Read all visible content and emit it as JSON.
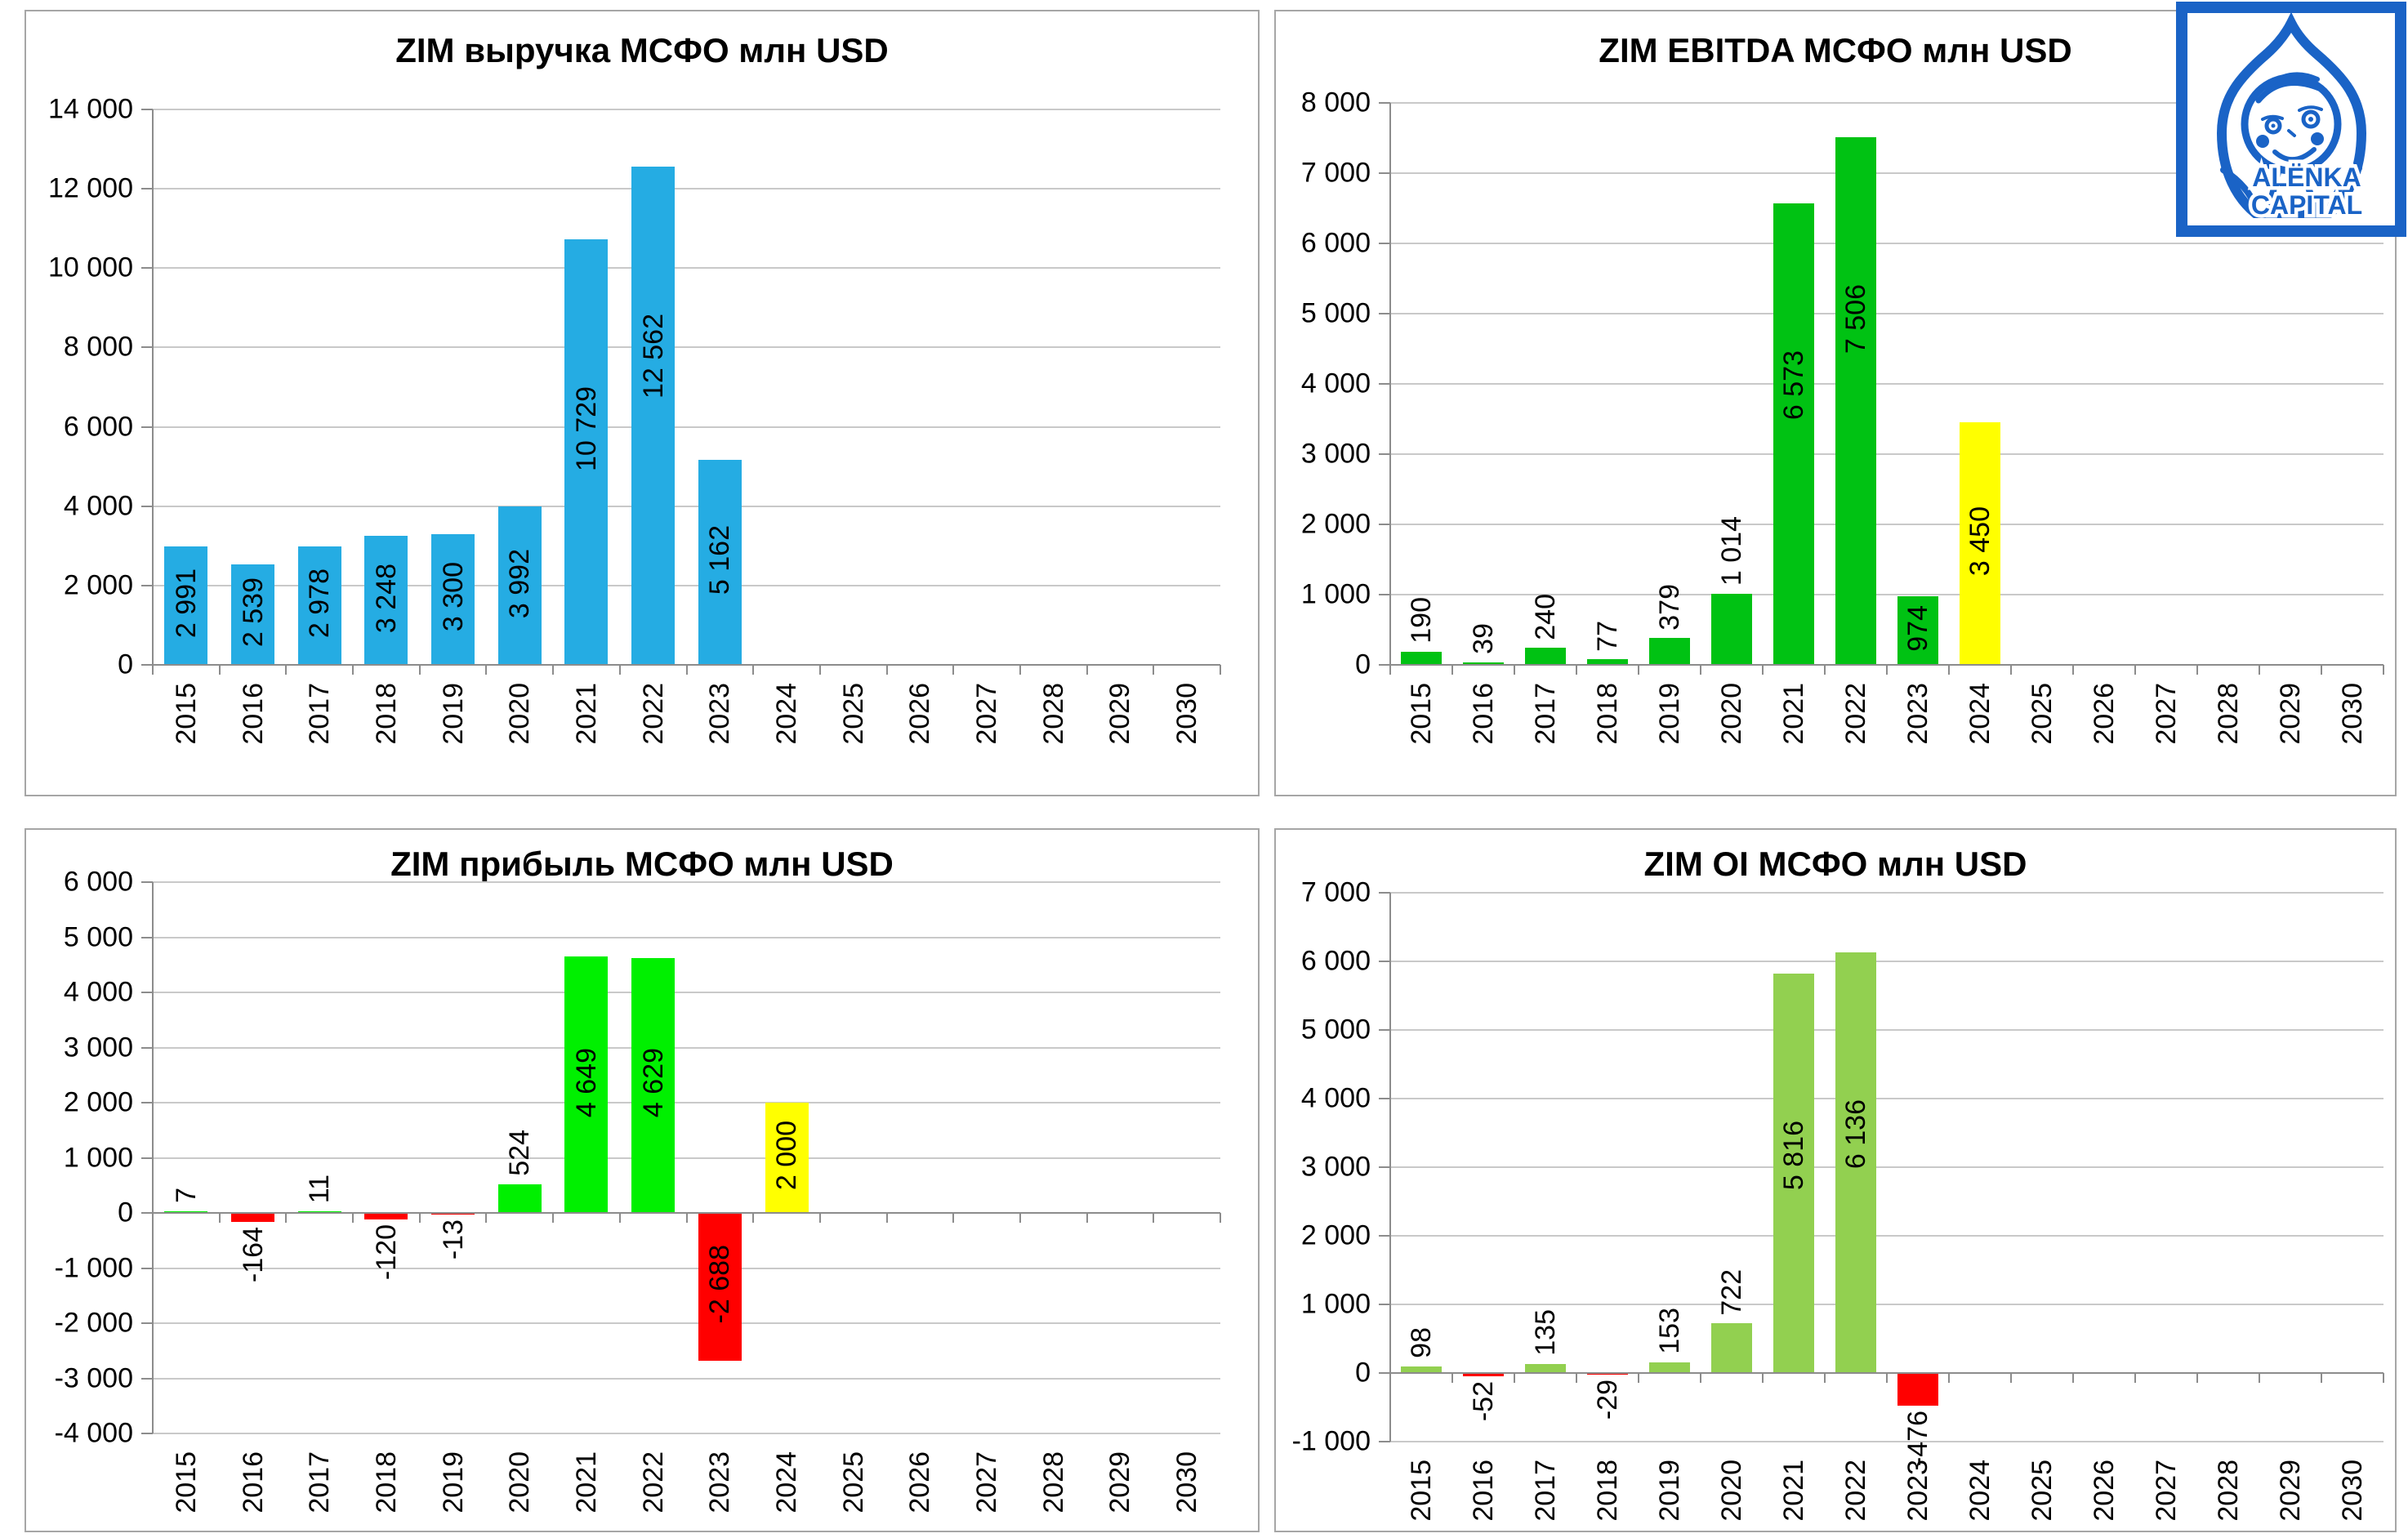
{
  "logo": {
    "line1": "ALЁNKA",
    "line2": "CAPITAL",
    "color": "#1a63c6"
  },
  "categories": [
    "2015",
    "2016",
    "2017",
    "2018",
    "2019",
    "2020",
    "2021",
    "2022",
    "2023",
    "2024",
    "2025",
    "2026",
    "2027",
    "2028",
    "2029",
    "2030"
  ],
  "chart_data": [
    {
      "type": "bar",
      "title": "ZIM выручка МСФО млн USD",
      "categories": [
        "2015",
        "2016",
        "2017",
        "2018",
        "2019",
        "2020",
        "2021",
        "2022",
        "2023",
        "2024",
        "2025",
        "2026",
        "2027",
        "2028",
        "2029",
        "2030"
      ],
      "values": [
        2991,
        2539,
        2978,
        3248,
        3300,
        3992,
        10729,
        12562,
        5162,
        null,
        null,
        null,
        null,
        null,
        null,
        null
      ],
      "labels": [
        "2 991",
        "2 539",
        "2 978",
        "3 248",
        "3 300",
        "3 992",
        "10 729",
        "12 562",
        "5 162"
      ],
      "colors": [
        "#25ace3",
        "#25ace3",
        "#25ace3",
        "#25ace3",
        "#25ace3",
        "#25ace3",
        "#25ace3",
        "#25ace3",
        "#25ace3"
      ],
      "xlabel": "",
      "ylabel": "",
      "ylim": [
        0,
        14000
      ],
      "ystep": 2000,
      "grid": true,
      "legend": false
    },
    {
      "type": "bar",
      "title": "ZIM EBITDA МСФО млн USD",
      "categories": [
        "2015",
        "2016",
        "2017",
        "2018",
        "2019",
        "2020",
        "2021",
        "2022",
        "2023",
        "2024",
        "2025",
        "2026",
        "2027",
        "2028",
        "2029",
        "2030"
      ],
      "values": [
        190,
        39,
        240,
        77,
        379,
        1014,
        6573,
        7506,
        974,
        3450,
        null,
        null,
        null,
        null,
        null,
        null
      ],
      "labels": [
        "190",
        "39",
        "240",
        "77",
        "379",
        "1 014",
        "6 573",
        "7 506",
        "974",
        "3 450"
      ],
      "colors": [
        "#00c213",
        "#00c213",
        "#00c213",
        "#00c213",
        "#00c213",
        "#00c213",
        "#00c213",
        "#00c213",
        "#00c213",
        "#ffff00"
      ],
      "xlabel": "",
      "ylabel": "",
      "ylim": [
        0,
        8000
      ],
      "ystep": 1000,
      "grid": true,
      "legend": false
    },
    {
      "type": "bar",
      "title": "ZIM прибыль МСФО млн USD",
      "categories": [
        "2015",
        "2016",
        "2017",
        "2018",
        "2019",
        "2020",
        "2021",
        "2022",
        "2023",
        "2024",
        "2025",
        "2026",
        "2027",
        "2028",
        "2029",
        "2030"
      ],
      "values": [
        7,
        -164,
        11,
        -120,
        -13,
        524,
        4649,
        4629,
        -2688,
        2000,
        null,
        null,
        null,
        null,
        null,
        null
      ],
      "labels": [
        "7",
        "-164",
        "11",
        "-120",
        "-13",
        "524",
        "4 649",
        "4 629",
        "-2 688",
        "2 000"
      ],
      "colors": [
        "#00f000",
        "#ff0000",
        "#00f000",
        "#ff0000",
        "#ff0000",
        "#00f000",
        "#00f000",
        "#00f000",
        "#ff0000",
        "#ffff00"
      ],
      "xlabel": "",
      "ylabel": "",
      "ylim": [
        -4000,
        6000
      ],
      "ystep": 1000,
      "grid": true,
      "legend": false
    },
    {
      "type": "bar",
      "title": "ZIM OI МСФО млн USD",
      "categories": [
        "2015",
        "2016",
        "2017",
        "2018",
        "2019",
        "2020",
        "2021",
        "2022",
        "2023",
        "2024",
        "2025",
        "2026",
        "2027",
        "2028",
        "2029",
        "2030"
      ],
      "values": [
        98,
        -52,
        135,
        -29,
        153,
        722,
        5816,
        6136,
        -476,
        null,
        null,
        null,
        null,
        null,
        null,
        null
      ],
      "labels": [
        "98",
        "-52",
        "135",
        "-29",
        "153",
        "722",
        "5 816",
        "6 136",
        "-476"
      ],
      "colors": [
        "#92d050",
        "#ff0000",
        "#92d050",
        "#ff0000",
        "#92d050",
        "#92d050",
        "#92d050",
        "#92d050",
        "#ff0000"
      ],
      "xlabel": "",
      "ylabel": "",
      "ylim": [
        -1000,
        7000
      ],
      "ystep": 1000,
      "grid": true,
      "legend": false
    }
  ]
}
